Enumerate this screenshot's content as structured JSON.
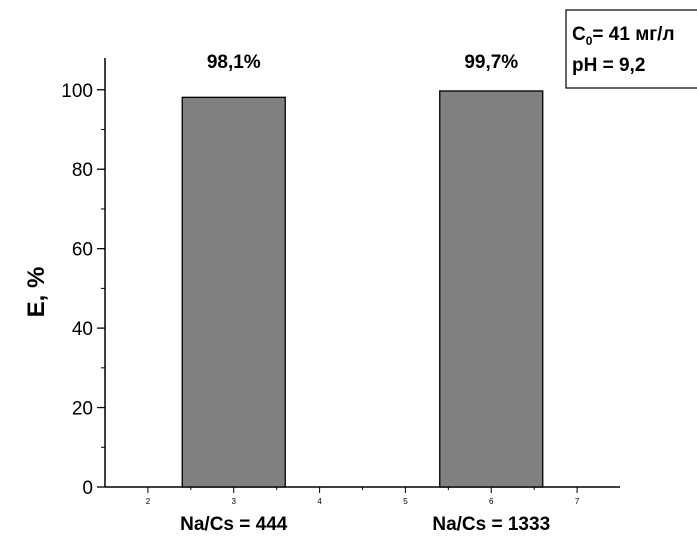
{
  "chart_data": {
    "type": "bar",
    "ylabel": "E, %",
    "ylim": [
      0,
      108
    ],
    "y_ticks": [
      0,
      20,
      40,
      60,
      80,
      100
    ],
    "x_ticks": [
      "2",
      "3",
      "4",
      "5",
      "6",
      "7"
    ],
    "xlim": [
      1.5,
      7.5
    ],
    "bar_color": "#808080",
    "bars": [
      {
        "x": 3,
        "width": 1.2,
        "value": 98.1,
        "data_label": "98,1%",
        "category_label": "Na/Cs = 444"
      },
      {
        "x": 6,
        "width": 1.2,
        "value": 99.7,
        "data_label": "99,7%",
        "category_label": "Na/Cs = 1333"
      }
    ],
    "annotation": {
      "line1_prefix": "C",
      "line1_subscript": "0",
      "line1_suffix": "= 41 мг/л",
      "line2": "pH = 9,2"
    },
    "grid": false
  }
}
